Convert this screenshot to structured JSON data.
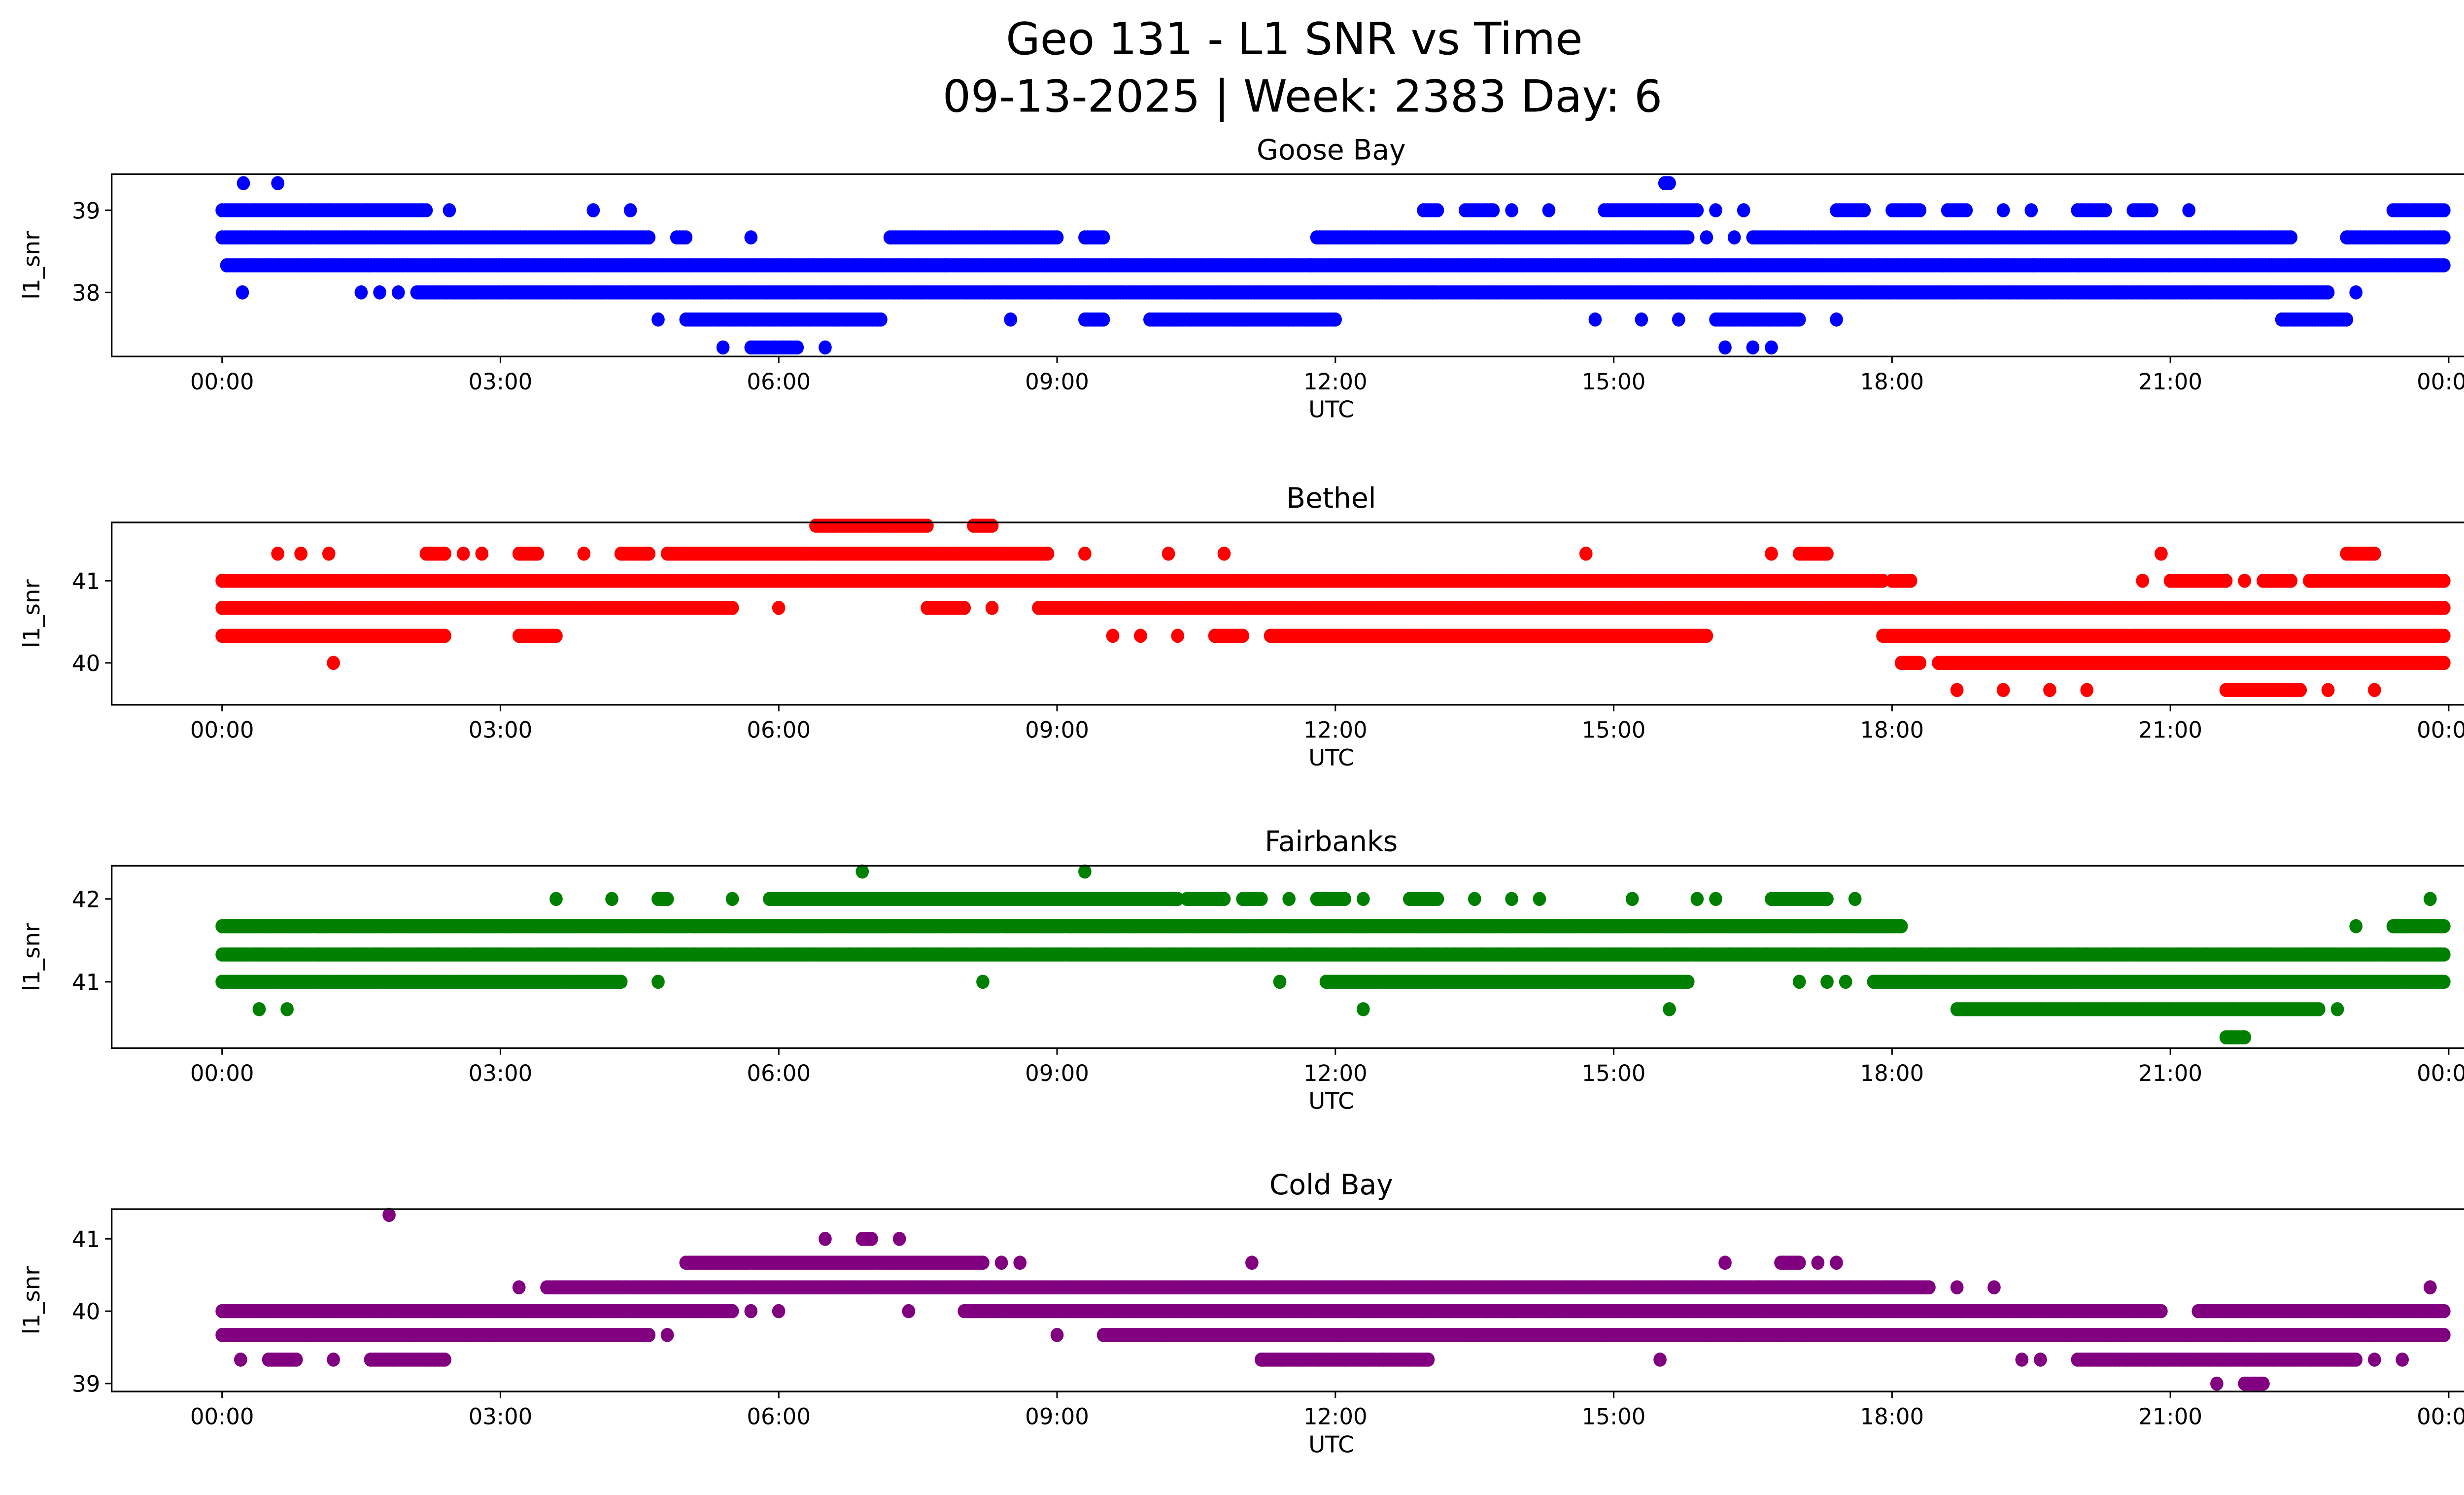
{
  "chart_data": {
    "type": "scatter",
    "title": "Geo 131 - L1 SNR vs Time",
    "subtitle": "09-13-2025 | Week: 2383 Day: 6",
    "xlabel": "UTC",
    "ylabel": "l1_snr",
    "x_units": "hours since 00:00 UTC",
    "xlim": [
      -1.19,
      25.1
    ],
    "x_ticks": [
      0,
      3,
      6,
      9,
      12,
      15,
      18,
      21,
      24
    ],
    "x_tick_labels": [
      "00:00",
      "03:00",
      "06:00",
      "09:00",
      "12:00",
      "15:00",
      "18:00",
      "21:00",
      "00:00"
    ],
    "panels": [
      {
        "title": "Goose Bay",
        "color": "#0000ff",
        "ylim": [
          37.22,
          39.44
        ],
        "y_ticks": [
          38,
          39
        ],
        "y_tick_labels": [
          "38",
          "39"
        ],
        "levels": [
          {
            "snr": 39.33,
            "segments": [
              [
                0.23,
                0.23
              ],
              [
                0.6,
                0.6
              ],
              [
                15.55,
                15.6
              ]
            ]
          },
          {
            "snr": 39.0,
            "segments": [
              [
                0,
                2.2
              ],
              [
                2.45,
                2.45
              ],
              [
                4.0,
                4.0
              ],
              [
                4.4,
                4.4
              ],
              [
                12.95,
                13.1
              ],
              [
                13.4,
                13.7
              ],
              [
                13.9,
                13.9
              ],
              [
                14.3,
                14.3
              ],
              [
                14.9,
                15.9
              ],
              [
                16.1,
                16.1
              ],
              [
                16.4,
                16.4
              ],
              [
                17.4,
                17.7
              ],
              [
                18.0,
                18.3
              ],
              [
                18.6,
                18.8
              ],
              [
                19.2,
                19.2
              ],
              [
                19.5,
                19.5
              ],
              [
                20.0,
                20.3
              ],
              [
                20.6,
                20.8
              ],
              [
                21.2,
                21.2
              ],
              [
                23.4,
                23.95
              ]
            ]
          },
          {
            "snr": 38.67,
            "segments": [
              [
                0,
                4.6
              ],
              [
                4.9,
                5.0
              ],
              [
                5.7,
                5.7
              ],
              [
                7.2,
                9.0
              ],
              [
                9.3,
                9.5
              ],
              [
                11.8,
                15.8
              ],
              [
                16.0,
                16.0
              ],
              [
                16.3,
                16.3
              ],
              [
                16.5,
                22.3
              ],
              [
                22.9,
                23.95
              ]
            ]
          },
          {
            "snr": 38.33,
            "segments": [
              [
                0.05,
                23.95
              ]
            ]
          },
          {
            "snr": 38.0,
            "segments": [
              [
                0.22,
                0.22
              ],
              [
                1.5,
                1.5
              ],
              [
                1.7,
                1.7
              ],
              [
                1.9,
                1.9
              ],
              [
                2.1,
                22.7
              ],
              [
                23.0,
                23.0
              ]
            ]
          },
          {
            "snr": 37.67,
            "segments": [
              [
                4.7,
                4.7
              ],
              [
                5.0,
                7.1
              ],
              [
                8.5,
                8.5
              ],
              [
                9.3,
                9.5
              ],
              [
                10.0,
                12.0
              ],
              [
                14.8,
                14.8
              ],
              [
                15.3,
                15.3
              ],
              [
                15.7,
                15.7
              ],
              [
                16.1,
                17.0
              ],
              [
                17.4,
                17.4
              ],
              [
                22.2,
                22.9
              ]
            ]
          },
          {
            "snr": 37.33,
            "segments": [
              [
                5.4,
                5.4
              ],
              [
                5.7,
                6.2
              ],
              [
                6.5,
                6.5
              ],
              [
                16.2,
                16.2
              ],
              [
                16.5,
                16.5
              ],
              [
                16.7,
                16.7
              ]
            ]
          }
        ]
      },
      {
        "title": "Bethel",
        "color": "#ff0000",
        "ylim": [
          39.49,
          41.71
        ],
        "y_ticks": [
          40,
          41
        ],
        "y_tick_labels": [
          "40",
          "41"
        ],
        "levels": [
          {
            "snr": 41.67,
            "segments": [
              [
                6.4,
                7.6
              ],
              [
                8.1,
                8.3
              ]
            ]
          },
          {
            "snr": 41.33,
            "segments": [
              [
                0.6,
                0.6
              ],
              [
                0.85,
                0.85
              ],
              [
                1.15,
                1.15
              ],
              [
                2.2,
                2.4
              ],
              [
                2.6,
                2.6
              ],
              [
                2.8,
                2.8
              ],
              [
                3.2,
                3.4
              ],
              [
                3.9,
                3.9
              ],
              [
                4.3,
                4.6
              ],
              [
                4.8,
                8.9
              ],
              [
                9.3,
                9.3
              ],
              [
                10.2,
                10.2
              ],
              [
                10.8,
                10.8
              ],
              [
                14.7,
                14.7
              ],
              [
                16.7,
                16.7
              ],
              [
                17.0,
                17.3
              ],
              [
                20.9,
                20.9
              ],
              [
                22.9,
                23.2
              ]
            ]
          },
          {
            "snr": 41.0,
            "segments": [
              [
                0,
                17.9
              ],
              [
                18.0,
                18.2
              ],
              [
                20.7,
                20.7
              ],
              [
                21.0,
                21.6
              ],
              [
                21.8,
                21.8
              ],
              [
                22.0,
                22.3
              ],
              [
                22.5,
                23.95
              ]
            ]
          },
          {
            "snr": 40.67,
            "segments": [
              [
                0,
                5.5
              ],
              [
                6.0,
                6.0
              ],
              [
                7.6,
                8.0
              ],
              [
                8.3,
                8.3
              ],
              [
                8.8,
                23.95
              ]
            ]
          },
          {
            "snr": 40.33,
            "segments": [
              [
                0,
                2.4
              ],
              [
                3.2,
                3.6
              ],
              [
                9.6,
                9.6
              ],
              [
                9.9,
                9.9
              ],
              [
                10.3,
                10.3
              ],
              [
                10.7,
                11.0
              ],
              [
                11.3,
                16.0
              ],
              [
                17.9,
                23.95
              ]
            ]
          },
          {
            "snr": 40.0,
            "segments": [
              [
                1.2,
                1.2
              ],
              [
                18.1,
                18.3
              ],
              [
                18.5,
                23.95
              ]
            ]
          },
          {
            "snr": 39.67,
            "segments": [
              [
                18.7,
                18.7
              ],
              [
                19.2,
                19.2
              ],
              [
                19.7,
                19.7
              ],
              [
                20.1,
                20.1
              ],
              [
                21.6,
                22.4
              ],
              [
                22.7,
                22.7
              ],
              [
                23.2,
                23.2
              ]
            ]
          }
        ]
      },
      {
        "title": "Fairbanks",
        "color": "#008000",
        "ylim": [
          40.2,
          42.4
        ],
        "y_ticks": [
          41,
          42
        ],
        "y_tick_labels": [
          "41",
          "42"
        ],
        "levels": [
          {
            "snr": 42.33,
            "segments": [
              [
                6.9,
                6.9
              ],
              [
                9.3,
                9.3
              ]
            ]
          },
          {
            "snr": 42.0,
            "segments": [
              [
                3.6,
                3.6
              ],
              [
                4.2,
                4.2
              ],
              [
                4.7,
                4.8
              ],
              [
                5.5,
                5.5
              ],
              [
                5.9,
                10.3
              ],
              [
                10.4,
                10.8
              ],
              [
                11.0,
                11.2
              ],
              [
                11.5,
                11.5
              ],
              [
                11.8,
                12.1
              ],
              [
                12.3,
                12.3
              ],
              [
                12.8,
                13.1
              ],
              [
                13.5,
                13.5
              ],
              [
                13.9,
                13.9
              ],
              [
                14.2,
                14.2
              ],
              [
                15.2,
                15.2
              ],
              [
                15.9,
                15.9
              ],
              [
                16.1,
                16.1
              ],
              [
                16.7,
                17.3
              ],
              [
                17.6,
                17.6
              ],
              [
                23.8,
                23.8
              ]
            ]
          },
          {
            "snr": 41.67,
            "segments": [
              [
                0,
                18.1
              ],
              [
                23.0,
                23.0
              ],
              [
                23.4,
                23.95
              ]
            ]
          },
          {
            "snr": 41.33,
            "segments": [
              [
                0,
                23.95
              ]
            ]
          },
          {
            "snr": 41.0,
            "segments": [
              [
                0,
                4.3
              ],
              [
                4.7,
                4.7
              ],
              [
                8.2,
                8.2
              ],
              [
                11.4,
                11.4
              ],
              [
                11.9,
                15.8
              ],
              [
                17.0,
                17.0
              ],
              [
                17.3,
                17.3
              ],
              [
                17.5,
                17.5
              ],
              [
                17.8,
                23.95
              ]
            ]
          },
          {
            "snr": 40.67,
            "segments": [
              [
                0.4,
                0.4
              ],
              [
                0.7,
                0.7
              ],
              [
                12.3,
                12.3
              ],
              [
                15.6,
                15.6
              ],
              [
                18.7,
                22.6
              ],
              [
                22.8,
                22.8
              ]
            ]
          },
          {
            "snr": 40.33,
            "segments": [
              [
                21.6,
                21.8
              ]
            ]
          }
        ]
      },
      {
        "title": "Cold Bay",
        "color": "#800080",
        "ylim": [
          38.89,
          41.41
        ],
        "y_ticks": [
          39,
          40,
          41
        ],
        "y_tick_labels": [
          "39",
          "40",
          "41"
        ],
        "levels": [
          {
            "snr": 41.33,
            "segments": [
              [
                1.8,
                1.8
              ]
            ]
          },
          {
            "snr": 41.0,
            "segments": [
              [
                6.5,
                6.5
              ],
              [
                6.9,
                7.0
              ],
              [
                7.3,
                7.3
              ]
            ]
          },
          {
            "snr": 40.67,
            "segments": [
              [
                5.0,
                8.2
              ],
              [
                8.4,
                8.4
              ],
              [
                8.6,
                8.6
              ],
              [
                11.1,
                11.1
              ],
              [
                16.2,
                16.2
              ],
              [
                16.8,
                17.0
              ],
              [
                17.2,
                17.2
              ],
              [
                17.4,
                17.4
              ]
            ]
          },
          {
            "snr": 40.33,
            "segments": [
              [
                3.2,
                3.2
              ],
              [
                3.5,
                18.4
              ],
              [
                18.7,
                18.7
              ],
              [
                19.1,
                19.1
              ],
              [
                23.8,
                23.8
              ]
            ]
          },
          {
            "snr": 40.0,
            "segments": [
              [
                0,
                5.5
              ],
              [
                5.7,
                5.7
              ],
              [
                6.0,
                6.0
              ],
              [
                7.4,
                7.4
              ],
              [
                8.0,
                20.9
              ],
              [
                21.3,
                23.95
              ]
            ]
          },
          {
            "snr": 39.67,
            "segments": [
              [
                0,
                4.6
              ],
              [
                4.8,
                4.8
              ],
              [
                9.0,
                9.0
              ],
              [
                9.5,
                23.95
              ]
            ]
          },
          {
            "snr": 39.33,
            "segments": [
              [
                0.2,
                0.2
              ],
              [
                0.5,
                0.8
              ],
              [
                1.2,
                1.2
              ],
              [
                1.6,
                2.4
              ],
              [
                11.2,
                13.0
              ],
              [
                15.5,
                15.5
              ],
              [
                19.4,
                19.4
              ],
              [
                19.6,
                19.6
              ],
              [
                20.0,
                23.0
              ],
              [
                23.2,
                23.2
              ],
              [
                23.5,
                23.5
              ]
            ]
          },
          {
            "snr": 39.0,
            "segments": [
              [
                21.5,
                21.5
              ],
              [
                21.8,
                22.0
              ]
            ]
          }
        ]
      }
    ]
  }
}
